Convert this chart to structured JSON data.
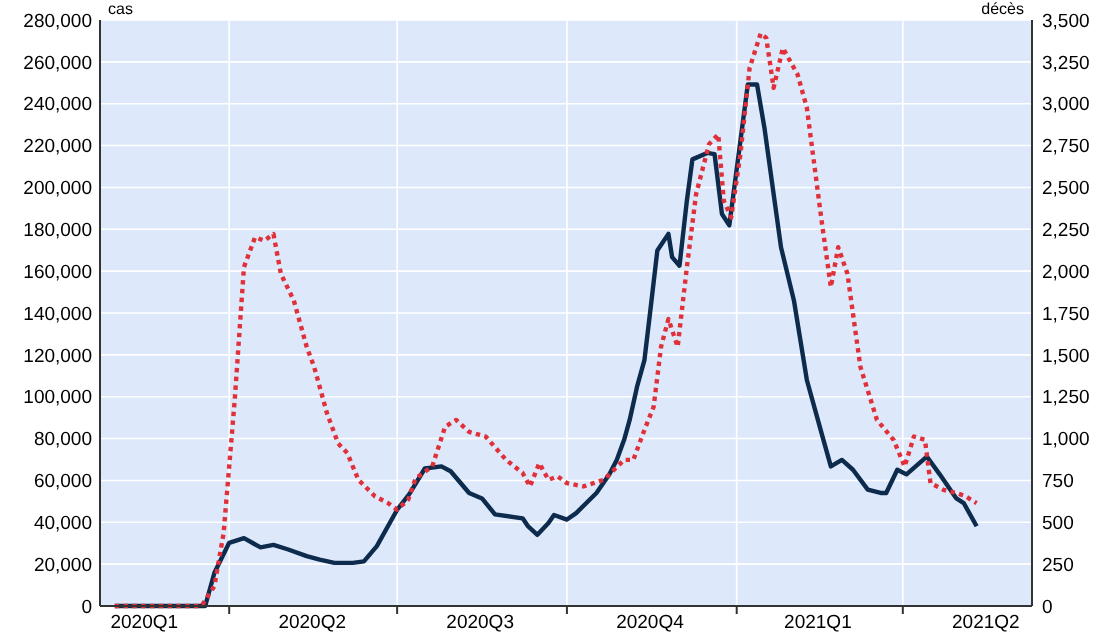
{
  "chart_data": {
    "type": "line",
    "ylabel": "cas",
    "y2label": "décès",
    "grid": true,
    "xlim": [
      "2020-01-22",
      "2021-06-10"
    ],
    "xticks": [
      {
        "value": "2020-02-15",
        "label": "2020Q1"
      },
      {
        "value": "2020-04-01",
        "label": null
      },
      {
        "value": "2020-05-16",
        "label": "2020Q2"
      },
      {
        "value": "2020-07-01",
        "label": null
      },
      {
        "value": "2020-08-15",
        "label": "2020Q3"
      },
      {
        "value": "2020-10-01",
        "label": null
      },
      {
        "value": "2020-11-15",
        "label": "2020Q4"
      },
      {
        "value": "2021-01-01",
        "label": null
      },
      {
        "value": "2021-02-14",
        "label": "2021Q1"
      },
      {
        "value": "2021-04-01",
        "label": null
      },
      {
        "value": "2021-05-16",
        "label": "2021Q2"
      }
    ],
    "ylim": [
      0,
      280000
    ],
    "yticks": [
      0,
      {
        "value": 20000,
        "label": "20,000"
      },
      {
        "value": 40000,
        "label": "40,000"
      },
      {
        "value": 60000,
        "label": "60,000"
      },
      {
        "value": 80000,
        "label": "80,000"
      },
      {
        "value": 100000,
        "label": "100,000"
      },
      {
        "value": 120000,
        "label": "120,000"
      },
      {
        "value": 140000,
        "label": "140,000"
      },
      {
        "value": 160000,
        "label": "160,000"
      },
      {
        "value": 180000,
        "label": "180,000"
      },
      {
        "value": 200000,
        "label": "200,000"
      },
      {
        "value": 220000,
        "label": "220,000"
      },
      {
        "value": 240000,
        "label": "240,000"
      },
      {
        "value": 260000,
        "label": "260,000"
      },
      {
        "value": 280000,
        "label": "280,000"
      }
    ],
    "y2lim": [
      0,
      3500
    ],
    "y2ticks": [
      0,
      250,
      500,
      750,
      {
        "value": 1000,
        "label": "1,000"
      },
      {
        "value": 1250,
        "label": "1,250"
      },
      {
        "value": 1500,
        "label": "1,500"
      },
      {
        "value": 1750,
        "label": "1,750"
      },
      {
        "value": 2000,
        "label": "2,000"
      },
      {
        "value": 2250,
        "label": "2,250"
      },
      {
        "value": 2500,
        "label": "2,500"
      },
      {
        "value": 2750,
        "label": "2,750"
      },
      {
        "value": 3000,
        "label": "3,000"
      },
      {
        "value": 3250,
        "label": "3,250"
      },
      {
        "value": 3500,
        "label": "3,500"
      }
    ],
    "series": [
      {
        "color": "#0d2b4c",
        "line_style": "solid",
        "x": [
          "2020-01-30",
          "2020-03-19",
          "2020-03-24",
          "2020-04-01",
          "2020-04-09",
          "2020-04-18",
          "2020-04-25",
          "2020-05-03",
          "2020-05-13",
          "2020-05-20",
          "2020-05-28",
          "2020-06-07",
          "2020-06-13",
          "2020-06-20",
          "2020-07-01",
          "2020-07-08",
          "2020-07-16",
          "2020-07-25",
          "2020-07-30",
          "2020-08-09",
          "2020-08-16",
          "2020-08-23",
          "2020-09-07",
          "2020-09-10",
          "2020-09-15",
          "2020-09-21",
          "2020-09-24",
          "2020-10-01",
          "2020-10-06",
          "2020-10-17",
          "2020-10-24",
          "2020-10-28",
          "2020-11-01",
          "2020-11-04",
          "2020-11-08",
          "2020-11-12",
          "2020-11-15",
          "2020-11-19",
          "2020-11-25",
          "2020-11-27",
          "2020-12-01",
          "2020-12-05",
          "2020-12-08",
          "2020-12-16",
          "2020-12-20",
          "2020-12-24",
          "2020-12-28",
          "2021-01-03",
          "2021-01-07",
          "2021-01-12",
          "2021-01-16",
          "2021-01-25",
          "2021-02-01",
          "2021-02-08",
          "2021-02-16",
          "2021-02-21",
          "2021-02-27",
          "2021-03-05",
          "2021-03-13",
          "2021-03-20",
          "2021-03-23",
          "2021-03-29",
          "2021-04-03",
          "2021-04-14",
          "2021-04-21",
          "2021-04-30",
          "2021-05-04",
          "2021-05-11"
        ],
        "values": [
          0,
          0,
          15900,
          30200,
          32400,
          28000,
          29200,
          27000,
          23800,
          22200,
          20600,
          20600,
          21300,
          28600,
          46000,
          54000,
          65700,
          66700,
          64400,
          54000,
          51400,
          43800,
          41900,
          38000,
          34000,
          39700,
          43500,
          41300,
          44400,
          54000,
          62900,
          69800,
          79400,
          88900,
          104800,
          117500,
          139700,
          169900,
          177800,
          166700,
          162600,
          193700,
          213400,
          216500,
          215900,
          187300,
          181900,
          222200,
          249200,
          249200,
          228600,
          171400,
          146000,
          108000,
          82500,
          66700,
          69800,
          65100,
          55600,
          54000,
          54000,
          65100,
          62900,
          71400,
          62900,
          51400,
          49200,
          38100
        ]
      },
      {
        "color": "#e0303a",
        "line_style": "dotted",
        "axis": "y2",
        "x": [
          "2020-01-30",
          "2020-03-17",
          "2020-03-24",
          "2020-03-29",
          "2020-04-04",
          "2020-04-09",
          "2020-04-15",
          "2020-04-20",
          "2020-04-25",
          "2020-04-29",
          "2020-05-06",
          "2020-05-13",
          "2020-05-17",
          "2020-05-24",
          "2020-05-30",
          "2020-06-04",
          "2020-06-10",
          "2020-06-19",
          "2020-06-26",
          "2020-07-01",
          "2020-07-07",
          "2020-07-11",
          "2020-07-20",
          "2020-07-27",
          "2020-08-02",
          "2020-08-09",
          "2020-08-18",
          "2020-08-29",
          "2020-09-07",
          "2020-09-11",
          "2020-09-16",
          "2020-09-21",
          "2020-09-26",
          "2020-10-01",
          "2020-10-10",
          "2020-10-21",
          "2020-11-01",
          "2020-11-06",
          "2020-11-12",
          "2020-11-17",
          "2020-11-21",
          "2020-11-25",
          "2020-11-30",
          "2020-12-05",
          "2020-12-10",
          "2020-12-17",
          "2020-12-22",
          "2020-12-25",
          "2020-12-29",
          "2021-01-03",
          "2021-01-08",
          "2021-01-14",
          "2021-01-17",
          "2021-01-21",
          "2021-01-26",
          "2021-02-03",
          "2021-02-08",
          "2021-02-16",
          "2021-02-21",
          "2021-02-25",
          "2021-03-02",
          "2021-03-09",
          "2021-03-18",
          "2021-03-27",
          "2021-04-02",
          "2021-04-07",
          "2021-04-13",
          "2021-04-16",
          "2021-04-23",
          "2021-04-30",
          "2021-05-05",
          "2021-05-11"
        ],
        "values": [
          0,
          0,
          119,
          437,
          1230,
          2024,
          2202,
          2182,
          2222,
          1984,
          1825,
          1548,
          1429,
          1151,
          972,
          913,
          754,
          655,
          615,
          575,
          635,
          762,
          833,
          1071,
          1111,
          1040,
          1012,
          873,
          794,
          714,
          853,
          754,
          774,
          734,
          714,
          754,
          873,
          873,
          1052,
          1190,
          1548,
          1714,
          1548,
          2024,
          2460,
          2758,
          2817,
          2420,
          2321,
          2698,
          3214,
          3420,
          3393,
          3095,
          3333,
          3174,
          2976,
          2301,
          1905,
          2143,
          1984,
          1429,
          1111,
          992,
          833,
          1012,
          992,
          734,
          694,
          675,
          655,
          615
        ]
      }
    ]
  }
}
